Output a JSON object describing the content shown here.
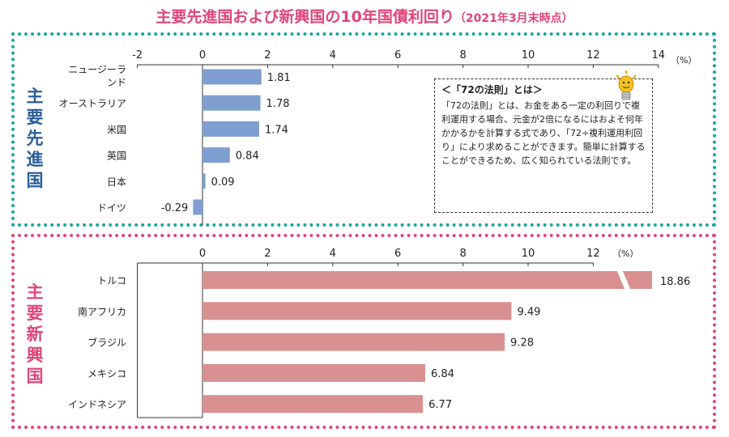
{
  "title": {
    "main": "主要先進国および新興国の10年国債利回り",
    "date": "（2021年3月末時点）"
  },
  "groups": {
    "advanced": "主要先進国",
    "emerging": "主要新興国"
  },
  "note": {
    "title": "＜「72の法則」とは＞",
    "body": "「72の法則」とは、お金をある一定の利回りで複利運用する場合、元金が2倍になるにはおよそ何年かかるかを計算する式であり、「72÷複利運用利回り」により求めることができます。簡単に計算することができるため、広く知られている法則です。"
  },
  "colors": {
    "title": "#e0457b",
    "advanced_bar": "#7f9fd0",
    "emerging_bar": "#d99091",
    "advanced_border": "#1aa6a3",
    "emerging_border": "#e0457b",
    "advanced_label": "#2a5d99"
  },
  "chart_data": [
    {
      "type": "bar",
      "orientation": "horizontal",
      "group": "主要先進国",
      "unit": "（%）",
      "xlim": [
        -2,
        14
      ],
      "ticks": [
        "-2",
        "0",
        "2",
        "4",
        "6",
        "8",
        "10",
        "12",
        "14"
      ],
      "categories": [
        "ニュージーランド",
        "オーストラリア",
        "米国",
        "英国",
        "日本",
        "ドイツ"
      ],
      "values": [
        1.81,
        1.78,
        1.74,
        0.84,
        0.09,
        -0.29
      ],
      "labels": [
        "1.81",
        "1.78",
        "1.74",
        "0.84",
        "0.09",
        "-0.29"
      ]
    },
    {
      "type": "bar",
      "orientation": "horizontal",
      "group": "主要新興国",
      "unit": "（%）",
      "xlim": [
        -2,
        12
      ],
      "axis_break": true,
      "ticks": [
        "0",
        "2",
        "4",
        "6",
        "8",
        "10",
        "12"
      ],
      "categories": [
        "トルコ",
        "南アフリカ",
        "ブラジル",
        "メキシコ",
        "インドネシア"
      ],
      "values": [
        18.86,
        9.49,
        9.28,
        6.84,
        6.77
      ],
      "labels": [
        "18.86",
        "9.49",
        "9.28",
        "6.84",
        "6.77"
      ]
    }
  ]
}
